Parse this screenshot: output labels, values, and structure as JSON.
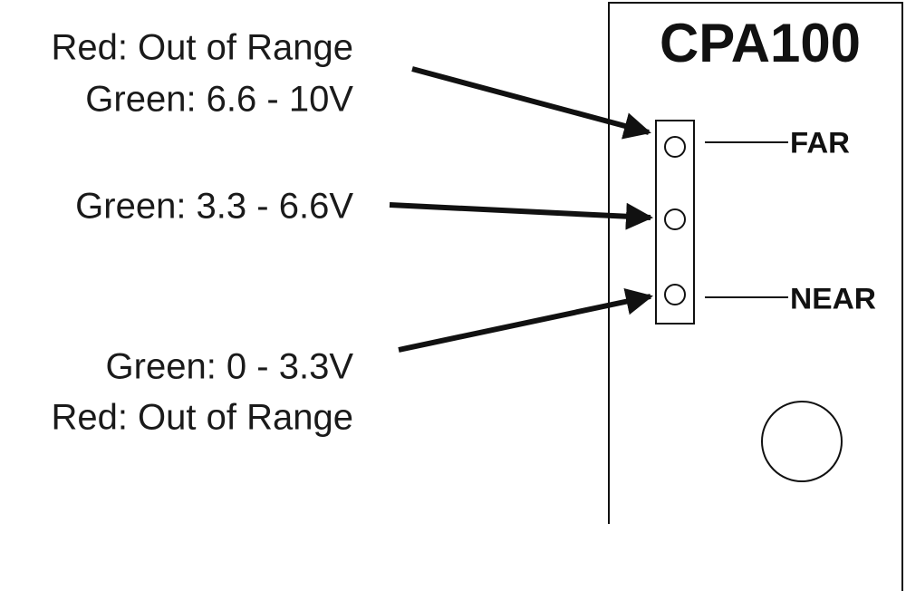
{
  "panel": {
    "title": "CPA100",
    "indicators": [
      {
        "label": "FAR"
      },
      {
        "label": "NEAR"
      }
    ]
  },
  "annotations": [
    {
      "lines": [
        "Red: Out of Range",
        "Green: 6.6 - 10V"
      ]
    },
    {
      "lines": [
        "Green: 3.3 - 6.6V"
      ]
    },
    {
      "lines": [
        "Green: 0 - 3.3V",
        "Red: Out of Range"
      ]
    }
  ]
}
